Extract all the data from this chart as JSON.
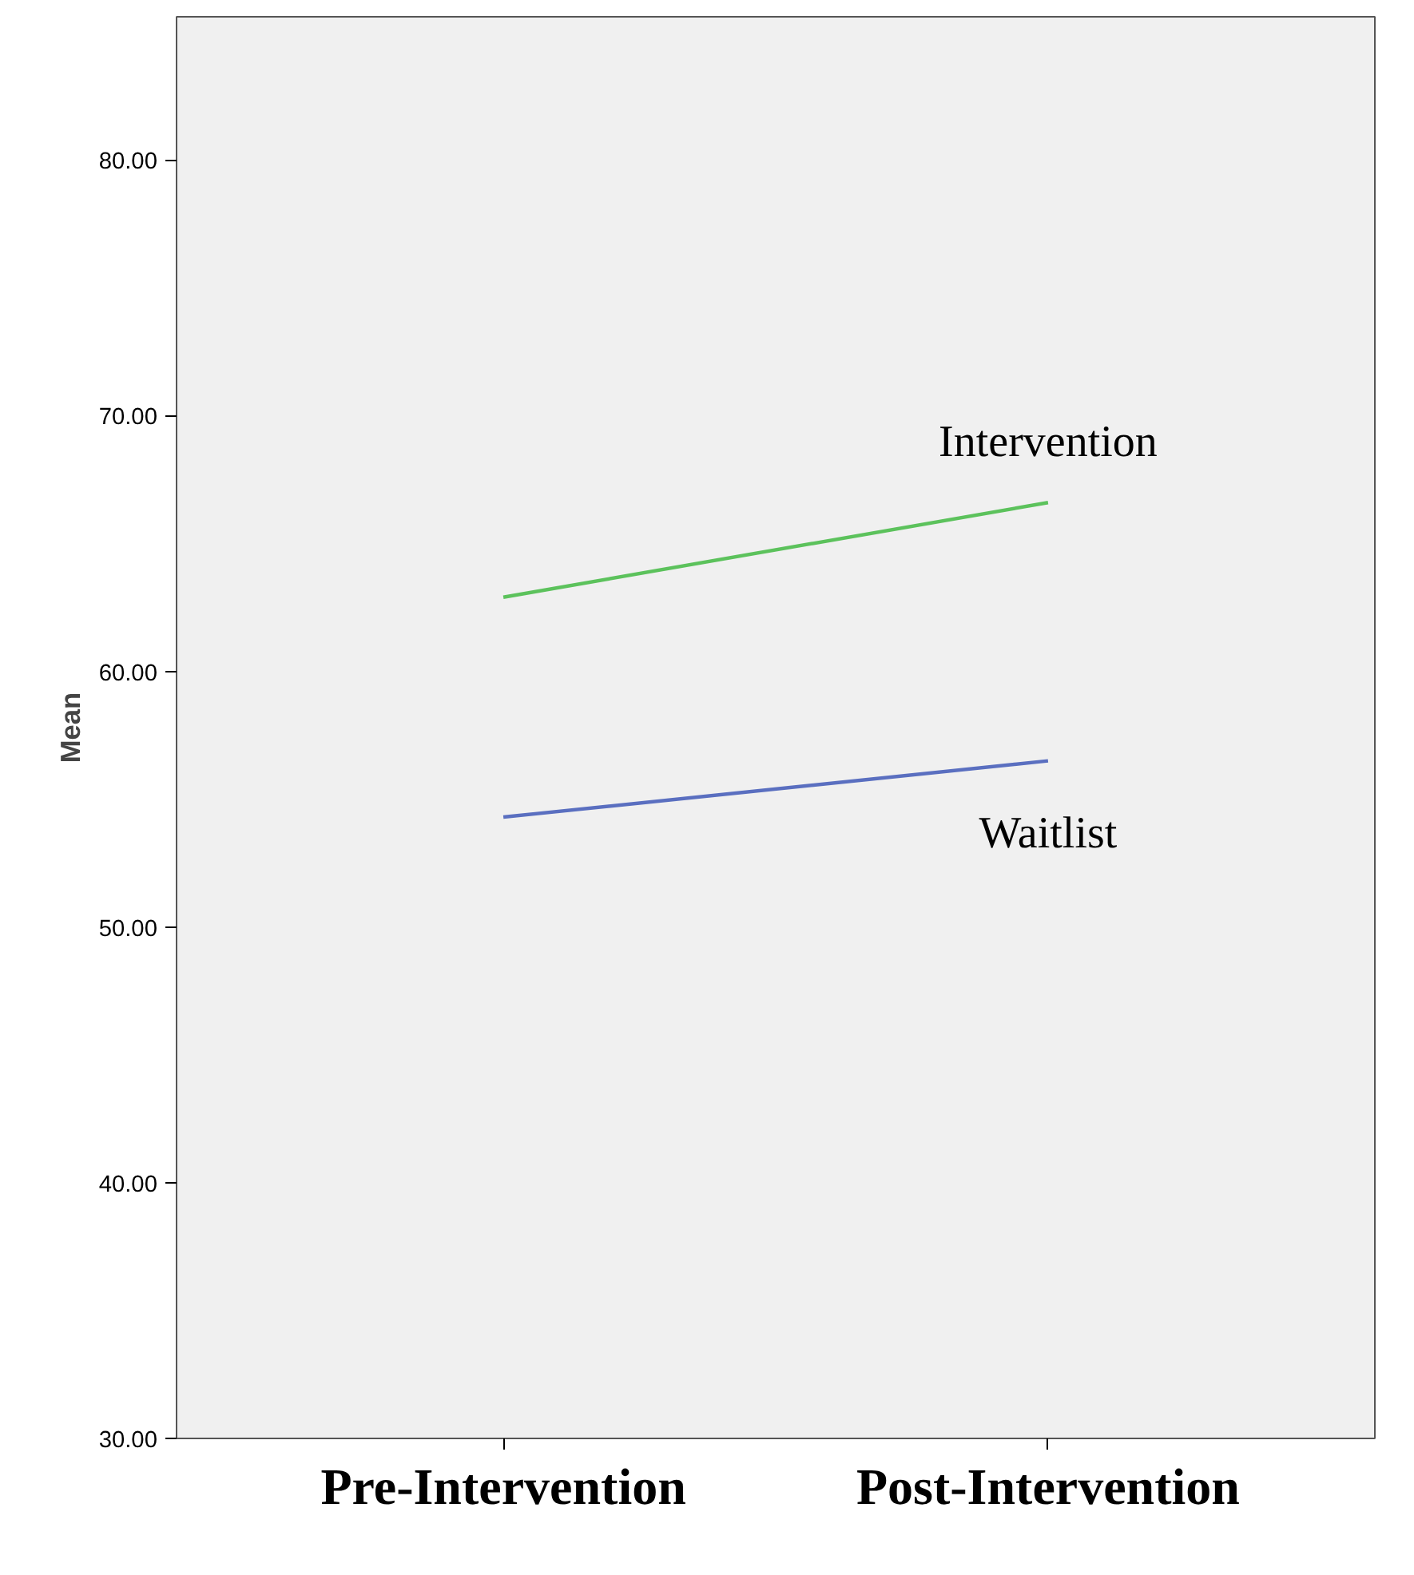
{
  "chart_data": {
    "type": "line",
    "ylabel": "Mean",
    "categories": [
      "Pre-Intervention",
      "Post-Intervention"
    ],
    "series": [
      {
        "name": "Intervention",
        "color": "#5cc25c",
        "values": [
          62.9,
          66.6
        ]
      },
      {
        "name": "Waitlist",
        "color": "#5a6fc0",
        "values": [
          54.3,
          56.5
        ]
      }
    ],
    "ylim": [
      30,
      85.6
    ],
    "yticks": [
      {
        "value": 30,
        "label": "30.00"
      },
      {
        "value": 40,
        "label": "40.00"
      },
      {
        "value": 50,
        "label": "50.00"
      },
      {
        "value": 60,
        "label": "60.00"
      },
      {
        "value": 70,
        "label": "70.00"
      },
      {
        "value": 80,
        "label": "80.00"
      }
    ],
    "grid": false,
    "marker": "none",
    "line_style": "solid"
  }
}
